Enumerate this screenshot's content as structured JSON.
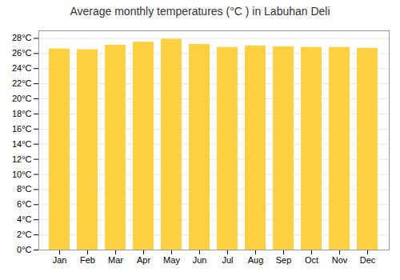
{
  "chart_data": {
    "type": "bar",
    "title": "Average monthly temperatures (°C ) in Labuhan Deli",
    "categories": [
      "Jan",
      "Feb",
      "Mar",
      "Apr",
      "May",
      "Jun",
      "Jul",
      "Aug",
      "Sep",
      "Oct",
      "Nov",
      "Dec"
    ],
    "values": [
      26.6,
      26.5,
      27.1,
      27.5,
      27.9,
      27.2,
      26.8,
      27.0,
      26.9,
      26.8,
      26.8,
      26.7
    ],
    "color": "#FFD040",
    "ylim": [
      0,
      29
    ],
    "yticks": [
      {
        "value": 0,
        "label": "0°C"
      },
      {
        "value": 2,
        "label": "2°C"
      },
      {
        "value": 4,
        "label": "4°C"
      },
      {
        "value": 6,
        "label": "6°C"
      },
      {
        "value": 8,
        "label": "8°C"
      },
      {
        "value": 10,
        "label": "10°C"
      },
      {
        "value": 12,
        "label": "12°C"
      },
      {
        "value": 14,
        "label": "14°C"
      },
      {
        "value": 16,
        "label": "16°C"
      },
      {
        "value": 18,
        "label": "18°C"
      },
      {
        "value": 20,
        "label": "20°C"
      },
      {
        "value": 22,
        "label": "22°C"
      },
      {
        "value": 24,
        "label": "24°C"
      },
      {
        "value": 26,
        "label": "26°C"
      },
      {
        "value": 28,
        "label": "28°C"
      }
    ],
    "grid": true
  }
}
